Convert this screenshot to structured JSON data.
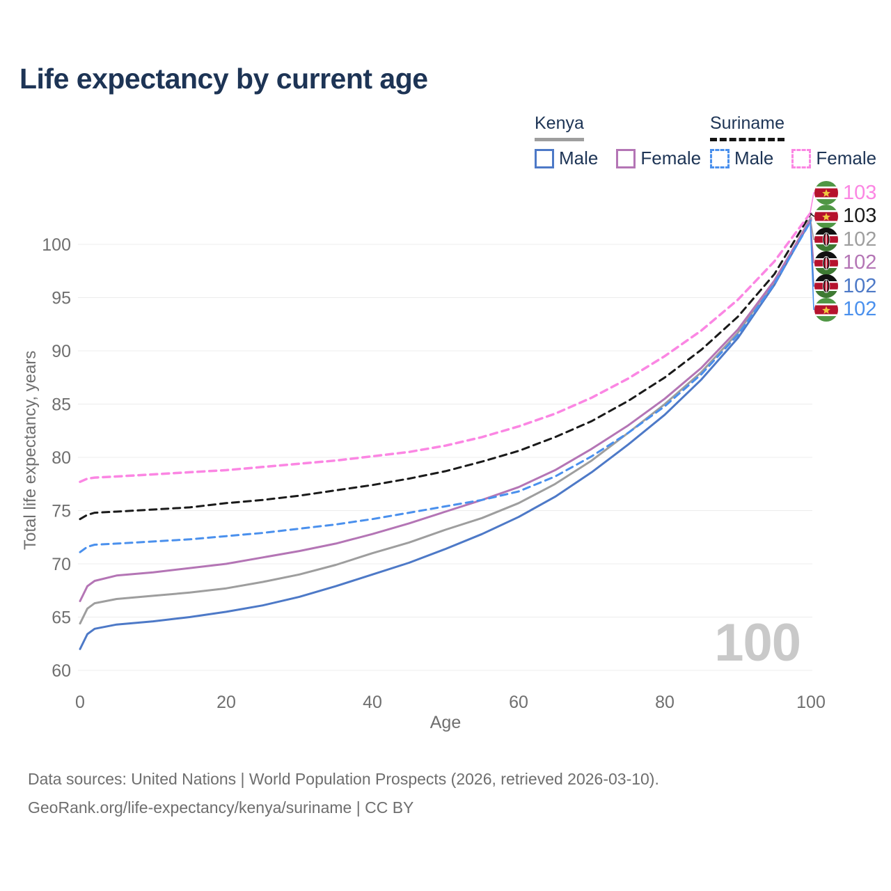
{
  "title": "Life expectancy by current age",
  "legend": {
    "groups": [
      {
        "label": "Kenya",
        "line_style": "solid",
        "underline_color": "#9e9e9e",
        "items": [
          {
            "label": "Male",
            "color": "#4d79c7"
          },
          {
            "label": "Female",
            "color": "#b475b5"
          }
        ]
      },
      {
        "label": "Suriname",
        "line_style": "dashed",
        "underline_color": "#151515",
        "items": [
          {
            "label": "Male",
            "color": "#4a90ed"
          },
          {
            "label": "Female",
            "color": "#fb86e3"
          }
        ]
      }
    ]
  },
  "watermark": "100",
  "footer": {
    "line1": "Data sources: United Nations | World Population Prospects (2026, retrieved 2026-03-10).",
    "line2": "GeoRank.org/life-expectancy/kenya/suriname | CC BY"
  },
  "chart_data": {
    "type": "line",
    "title": "Life expectancy by current age",
    "xlabel": "Age",
    "ylabel": "Total life expectancy, years",
    "x_ticks": [
      0,
      20,
      40,
      60,
      80,
      100
    ],
    "y_ticks": [
      60,
      65,
      70,
      75,
      80,
      85,
      90,
      95,
      100
    ],
    "xlim": [
      0,
      100
    ],
    "ylim": [
      60,
      103.5
    ],
    "grid": "horizontal-only",
    "legend_position": "top-right",
    "ages": [
      0,
      1,
      2,
      5,
      10,
      15,
      20,
      25,
      30,
      35,
      40,
      45,
      50,
      55,
      60,
      65,
      70,
      75,
      80,
      85,
      90,
      95,
      100
    ],
    "series": [
      {
        "name": "Kenya Male",
        "color": "#4d79c7",
        "dash": false,
        "values": [
          62.0,
          63.4,
          63.9,
          64.3,
          64.6,
          65.0,
          65.5,
          66.1,
          66.9,
          67.9,
          69.0,
          70.1,
          71.4,
          72.8,
          74.4,
          76.3,
          78.6,
          81.2,
          84.0,
          87.3,
          91.2,
          96.2,
          102.3
        ]
      },
      {
        "name": "Kenya",
        "color": "#9e9e9e",
        "dash": false,
        "values": [
          64.4,
          65.8,
          66.3,
          66.7,
          67.0,
          67.3,
          67.7,
          68.3,
          69.0,
          69.9,
          71.0,
          72.0,
          73.2,
          74.3,
          75.7,
          77.5,
          79.7,
          82.3,
          85.0,
          88.0,
          91.7,
          96.5,
          102.5
        ]
      },
      {
        "name": "Kenya Female",
        "color": "#b475b5",
        "dash": false,
        "values": [
          66.5,
          67.9,
          68.4,
          68.9,
          69.2,
          69.6,
          70.0,
          70.6,
          71.2,
          71.9,
          72.8,
          73.8,
          74.9,
          76.0,
          77.2,
          78.8,
          80.8,
          83.0,
          85.5,
          88.4,
          92.0,
          96.6,
          102.4
        ]
      },
      {
        "name": "Suriname Male",
        "color": "#4a90ed",
        "dash": true,
        "values": [
          71.1,
          71.6,
          71.8,
          71.9,
          72.1,
          72.3,
          72.6,
          72.9,
          73.3,
          73.7,
          74.2,
          74.8,
          75.4,
          76.0,
          76.8,
          78.2,
          80.1,
          82.3,
          84.8,
          87.8,
          91.5,
          96.3,
          102.2
        ]
      },
      {
        "name": "Suriname",
        "color": "#1a1a1a",
        "dash": true,
        "values": [
          74.2,
          74.6,
          74.8,
          74.9,
          75.1,
          75.3,
          75.7,
          76.0,
          76.4,
          76.9,
          77.4,
          78.0,
          78.7,
          79.6,
          80.6,
          81.9,
          83.4,
          85.3,
          87.5,
          90.1,
          93.2,
          97.2,
          102.9
        ]
      },
      {
        "name": "Suriname Female",
        "color": "#fb86e3",
        "dash": true,
        "values": [
          77.7,
          78.0,
          78.1,
          78.2,
          78.4,
          78.6,
          78.8,
          79.1,
          79.4,
          79.7,
          80.1,
          80.5,
          81.1,
          81.9,
          82.9,
          84.1,
          85.6,
          87.4,
          89.5,
          91.9,
          94.8,
          98.4,
          103.0
        ]
      }
    ],
    "end_labels": [
      {
        "value": "103",
        "color": "#fb86e3",
        "flag": "suriname",
        "series": "Suriname Female",
        "end_y": 103.0
      },
      {
        "value": "103",
        "color": "#1a1a1a",
        "flag": "suriname",
        "series": "Suriname",
        "end_y": 102.9
      },
      {
        "value": "102",
        "color": "#9e9e9e",
        "flag": "kenya",
        "series": "Kenya",
        "end_y": 102.5
      },
      {
        "value": "102",
        "color": "#b475b5",
        "flag": "kenya",
        "series": "Kenya Female",
        "end_y": 102.4
      },
      {
        "value": "102",
        "color": "#4d79c7",
        "flag": "kenya",
        "series": "Kenya Male",
        "end_y": 102.3
      },
      {
        "value": "102",
        "color": "#4a90ed",
        "flag": "suriname",
        "series": "Suriname Male",
        "end_y": 102.2
      }
    ],
    "flag_colors": {
      "suriname": {
        "green": "#4f9644",
        "white": "#ffffff",
        "red": "#b6122d",
        "star": "#efc940"
      },
      "kenya": {
        "black": "#111111",
        "white": "#ffffff",
        "red": "#b6122d",
        "green": "#3e7a33"
      }
    }
  }
}
